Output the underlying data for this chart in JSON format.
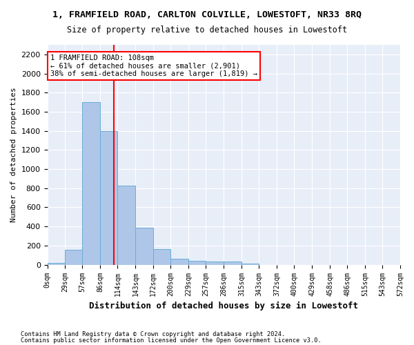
{
  "title": "1, FRAMFIELD ROAD, CARLTON COLVILLE, LOWESTOFT, NR33 8RQ",
  "subtitle": "Size of property relative to detached houses in Lowestoft",
  "xlabel": "Distribution of detached houses by size in Lowestoft",
  "ylabel": "Number of detached properties",
  "bar_values": [
    20,
    155,
    1700,
    1400,
    830,
    390,
    165,
    65,
    38,
    30,
    30,
    15,
    0,
    0,
    0,
    0,
    0,
    0,
    0,
    0
  ],
  "bin_edges": [
    0,
    29,
    57,
    86,
    114,
    143,
    172,
    200,
    229,
    257,
    286,
    315,
    343,
    372,
    400,
    429,
    458,
    486,
    515,
    543,
    572
  ],
  "bar_color": "#aec6e8",
  "bar_edge_color": "#6aaed6",
  "bg_color": "#e8eef8",
  "grid_color": "#ffffff",
  "vline_x": 108,
  "vline_color": "red",
  "annotation_text": "1 FRAMFIELD ROAD: 108sqm\n← 61% of detached houses are smaller (2,901)\n38% of semi-detached houses are larger (1,819) →",
  "annotation_box_color": "white",
  "annotation_box_edge": "red",
  "ylim": [
    0,
    2300
  ],
  "yticks": [
    0,
    200,
    400,
    600,
    800,
    1000,
    1200,
    1400,
    1600,
    1800,
    2000,
    2200
  ],
  "footnote1": "Contains HM Land Registry data © Crown copyright and database right 2024.",
  "footnote2": "Contains public sector information licensed under the Open Government Licence v3.0."
}
